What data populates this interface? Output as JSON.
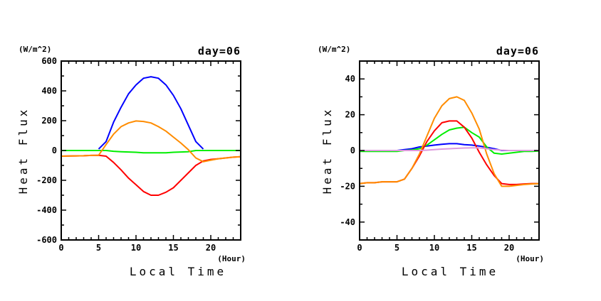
{
  "chart_data": [
    {
      "type": "line",
      "title": "day=06",
      "unit_label": "(W/m^2)",
      "xlabel": "Local Time",
      "xunit": "(Hour)",
      "ylabel": "Heat Flux",
      "xlim": [
        0,
        24
      ],
      "ylim": [
        -600,
        600
      ],
      "xticks": [
        0,
        5,
        10,
        15,
        20
      ],
      "yticks": [
        -600,
        -400,
        -200,
        0,
        200,
        400,
        600
      ],
      "ytick_labels": [
        "-600",
        "-400",
        "-200",
        "0",
        "200",
        "400",
        "600"
      ],
      "x_minor_step": 1,
      "y_minor_step": 100,
      "grid": false,
      "x": [
        0,
        1,
        2,
        3,
        4,
        5,
        6,
        7,
        8,
        9,
        10,
        11,
        12,
        13,
        14,
        15,
        16,
        17,
        18,
        19,
        20,
        21,
        22,
        23,
        24
      ],
      "series": [
        {
          "name": "blue",
          "color": "#0000ff",
          "values": [
            null,
            null,
            null,
            null,
            null,
            10,
            60,
            190,
            290,
            380,
            440,
            485,
            495,
            485,
            440,
            370,
            280,
            170,
            60,
            10,
            null,
            null,
            null,
            null,
            null
          ]
        },
        {
          "name": "green",
          "color": "#00ee00",
          "values": [
            0,
            0,
            0,
            0,
            0,
            0,
            0,
            -5,
            -8,
            -10,
            -12,
            -15,
            -15,
            -15,
            -15,
            -12,
            -10,
            -8,
            0,
            0,
            0,
            0,
            0,
            0,
            0
          ]
        },
        {
          "name": "red",
          "color": "#ff0000",
          "values": [
            -38,
            -37,
            -36,
            -35,
            -33,
            -32,
            -38,
            -80,
            -130,
            -185,
            -230,
            -275,
            -300,
            -300,
            -280,
            -250,
            -200,
            -150,
            -100,
            -70,
            -60,
            -55,
            -50,
            -45,
            -42
          ]
        },
        {
          "name": "orange",
          "color": "#ff8c00",
          "values": [
            -38,
            -37,
            -36,
            -35,
            -33,
            -32,
            40,
            110,
            160,
            185,
            198,
            195,
            185,
            160,
            130,
            90,
            50,
            5,
            -50,
            -75,
            -65,
            -55,
            -50,
            -45,
            -42
          ]
        }
      ]
    },
    {
      "type": "line",
      "title": "day=06",
      "unit_label": "(W/m^2)",
      "xlabel": "Local Time",
      "xunit": "(Hour)",
      "ylabel": "Heat Flux",
      "xlim": [
        0,
        24
      ],
      "ylim": [
        -50,
        50
      ],
      "xticks": [
        0,
        5,
        10,
        15,
        20
      ],
      "yticks": [
        -40,
        -20,
        0,
        20,
        40
      ],
      "ytick_labels": [
        "-40",
        "-20",
        "0",
        "20",
        "40"
      ],
      "x_minor_step": 1,
      "y_minor_step": 10,
      "grid": false,
      "x": [
        0,
        1,
        2,
        3,
        4,
        5,
        6,
        7,
        8,
        9,
        10,
        11,
        12,
        13,
        14,
        15,
        16,
        17,
        18,
        19,
        20,
        21,
        22,
        23,
        24
      ],
      "series": [
        {
          "name": "blue",
          "color": "#0000ff",
          "values": [
            0,
            0,
            0,
            0,
            0,
            0,
            0.5,
            1,
            2,
            2.5,
            3,
            3.5,
            3.8,
            3.8,
            3.3,
            3,
            2.5,
            1.8,
            1,
            0,
            0,
            0,
            0,
            0,
            0
          ]
        },
        {
          "name": "green",
          "color": "#00ee00",
          "values": [
            -0.5,
            -0.5,
            -0.5,
            -0.5,
            -0.5,
            -0.5,
            0,
            0.3,
            1,
            3,
            6,
            9,
            11.5,
            12.5,
            13,
            10,
            7.5,
            2,
            -1.5,
            -2,
            -1.5,
            -1,
            -0.5,
            -0.5,
            -0.3
          ]
        },
        {
          "name": "red",
          "color": "#ff0000",
          "values": [
            -18.5,
            -18,
            -18,
            -17.5,
            -17.5,
            -17.5,
            -16,
            -10,
            -3,
            5,
            11,
            15.5,
            16.5,
            16.5,
            13,
            7,
            -1,
            -8,
            -14,
            -18.5,
            -19,
            -19,
            -18.7,
            -18.5,
            -18.5
          ]
        },
        {
          "name": "orange",
          "color": "#ff8c00",
          "values": [
            -18.5,
            -18,
            -18,
            -17.5,
            -17.5,
            -17.5,
            -16,
            -10,
            -2,
            8,
            18,
            25,
            29,
            30,
            28,
            21,
            12,
            -2,
            -13,
            -20,
            -20,
            -19.5,
            -19,
            -18.7,
            -18.5
          ]
        },
        {
          "name": "pink",
          "color": "#dd99dd",
          "values": [
            0,
            0,
            0,
            0,
            0,
            0,
            0,
            0,
            0,
            0.2,
            0.5,
            0.8,
            1,
            1.2,
            1.4,
            1.5,
            1.5,
            1,
            0.5,
            0.2,
            0,
            0,
            0,
            0,
            0
          ]
        }
      ]
    }
  ]
}
